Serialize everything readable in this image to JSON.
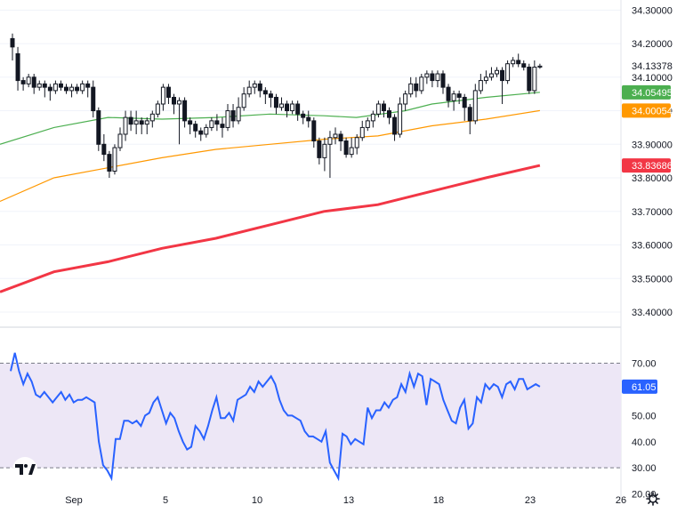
{
  "chart_data": [
    {
      "type": "candlestick",
      "ylim": [
        33.355,
        34.33
      ],
      "price_ticks": [
        "34.30000",
        "34.20000",
        "34.10000",
        "34.00000",
        "33.90000",
        "33.80000",
        "33.70000",
        "33.60000",
        "33.50000",
        "33.40000"
      ],
      "tick_values": [
        34.3,
        34.2,
        34.1,
        34.0,
        33.9,
        33.8,
        33.7,
        33.6,
        33.5,
        33.4
      ],
      "last_price": {
        "label": "34.13378",
        "value": 34.13378
      },
      "candles": [
        [
          34.215,
          34.19,
          34.23,
          34.15
        ],
        [
          34.17,
          34.09,
          34.19,
          34.06
        ],
        [
          34.09,
          34.08,
          34.1,
          34.06
        ],
        [
          34.08,
          34.1,
          34.11,
          34.07
        ],
        [
          34.1,
          34.07,
          34.11,
          34.05
        ],
        [
          34.07,
          34.08,
          34.09,
          34.06
        ],
        [
          34.08,
          34.07,
          34.09,
          34.04
        ],
        [
          34.07,
          34.06,
          34.08,
          34.03
        ],
        [
          34.06,
          34.08,
          34.09,
          34.05
        ],
        [
          34.08,
          34.07,
          34.09,
          34.06
        ],
        [
          34.07,
          34.06,
          34.08,
          34.05
        ],
        [
          34.06,
          34.07,
          34.08,
          34.04
        ],
        [
          34.07,
          34.06,
          34.08,
          34.05
        ],
        [
          34.06,
          34.08,
          34.09,
          34.05
        ],
        [
          34.08,
          34.07,
          34.09,
          34.04
        ],
        [
          34.07,
          34.0,
          34.09,
          33.98
        ],
        [
          34.0,
          33.9,
          34.01,
          33.88
        ],
        [
          33.9,
          33.87,
          33.93,
          33.85
        ],
        [
          33.87,
          33.82,
          33.88,
          33.8
        ],
        [
          33.82,
          33.89,
          33.9,
          33.81
        ],
        [
          33.89,
          33.93,
          33.95,
          33.88
        ],
        [
          33.93,
          33.98,
          34.0,
          33.91
        ],
        [
          33.98,
          33.96,
          34.0,
          33.94
        ],
        [
          33.96,
          33.97,
          34.0,
          33.93
        ],
        [
          33.97,
          33.96,
          33.98,
          33.93
        ],
        [
          33.96,
          33.97,
          33.98,
          33.93
        ],
        [
          33.97,
          33.99,
          34.0,
          33.95
        ],
        [
          33.99,
          34.02,
          34.03,
          33.98
        ],
        [
          34.02,
          34.07,
          34.08,
          34.0
        ],
        [
          34.07,
          34.04,
          34.08,
          34.02
        ],
        [
          34.04,
          34.02,
          34.05,
          33.99
        ],
        [
          34.02,
          34.03,
          34.04,
          33.9
        ],
        [
          34.03,
          33.97,
          34.04,
          33.95
        ],
        [
          33.97,
          33.96,
          33.98,
          33.93
        ],
        [
          33.96,
          33.94,
          33.97,
          33.92
        ],
        [
          33.94,
          33.93,
          33.95,
          33.91
        ],
        [
          33.93,
          33.95,
          33.96,
          33.92
        ],
        [
          33.95,
          33.97,
          33.98,
          33.94
        ],
        [
          33.97,
          33.96,
          33.99,
          33.94
        ],
        [
          33.96,
          33.95,
          33.98,
          33.92
        ],
        [
          33.95,
          34.0,
          34.02,
          33.94
        ],
        [
          34.0,
          33.97,
          34.02,
          33.95
        ],
        [
          33.97,
          34.01,
          34.04,
          33.96
        ],
        [
          34.01,
          34.05,
          34.07,
          34.0
        ],
        [
          34.05,
          34.07,
          34.09,
          34.04
        ],
        [
          34.07,
          34.08,
          34.09,
          34.05
        ],
        [
          34.08,
          34.06,
          34.09,
          34.04
        ],
        [
          34.06,
          34.05,
          34.07,
          34.02
        ],
        [
          34.05,
          34.04,
          34.06,
          34.01
        ],
        [
          34.04,
          34.01,
          34.05,
          33.99
        ],
        [
          34.01,
          34.02,
          34.04,
          34.0
        ],
        [
          34.02,
          34.0,
          34.03,
          33.98
        ],
        [
          34.0,
          34.02,
          34.03,
          33.99
        ],
        [
          34.02,
          33.99,
          34.03,
          33.97
        ],
        [
          33.99,
          33.98,
          34.0,
          33.96
        ],
        [
          33.98,
          33.97,
          34.0,
          33.95
        ],
        [
          33.97,
          33.91,
          33.98,
          33.89
        ],
        [
          33.91,
          33.86,
          33.92,
          33.84
        ],
        [
          33.86,
          33.9,
          33.92,
          33.82
        ],
        [
          33.9,
          33.92,
          33.94,
          33.8
        ],
        [
          33.92,
          33.93,
          33.95,
          33.9
        ],
        [
          33.93,
          33.91,
          33.94,
          33.88
        ],
        [
          33.91,
          33.87,
          33.92,
          33.86
        ],
        [
          33.87,
          33.89,
          33.92,
          33.86
        ],
        [
          33.89,
          33.92,
          33.93,
          33.87
        ],
        [
          33.92,
          33.95,
          33.97,
          33.91
        ],
        [
          33.95,
          33.97,
          33.98,
          33.94
        ],
        [
          33.97,
          33.99,
          34.0,
          33.95
        ],
        [
          33.99,
          34.02,
          34.03,
          33.98
        ],
        [
          34.02,
          34.0,
          34.03,
          33.98
        ],
        [
          34.0,
          33.98,
          34.01,
          33.96
        ],
        [
          33.98,
          33.93,
          33.99,
          33.91
        ],
        [
          33.93,
          34.02,
          34.04,
          33.92
        ],
        [
          34.02,
          34.05,
          34.06,
          34.0
        ],
        [
          34.05,
          34.08,
          34.1,
          34.04
        ],
        [
          34.08,
          34.06,
          34.1,
          34.04
        ],
        [
          34.06,
          34.1,
          34.11,
          34.05
        ],
        [
          34.1,
          34.11,
          34.12,
          34.08
        ],
        [
          34.11,
          34.09,
          34.12,
          34.07
        ],
        [
          34.09,
          34.11,
          34.12,
          34.07
        ],
        [
          34.11,
          34.07,
          34.12,
          34.05
        ],
        [
          34.07,
          34.03,
          34.08,
          34.01
        ],
        [
          34.03,
          34.05,
          34.06,
          34.0
        ],
        [
          34.05,
          34.04,
          34.06,
          34.02
        ],
        [
          34.04,
          34.01,
          34.05,
          33.97
        ],
        [
          34.01,
          33.97,
          34.02,
          33.93
        ],
        [
          33.97,
          34.06,
          34.08,
          33.96
        ],
        [
          34.06,
          34.09,
          34.11,
          34.05
        ],
        [
          34.09,
          34.1,
          34.12,
          34.08
        ],
        [
          34.1,
          34.11,
          34.13,
          34.09
        ],
        [
          34.11,
          34.12,
          34.13,
          34.1
        ],
        [
          34.12,
          34.09,
          34.13,
          34.02
        ],
        [
          34.09,
          34.14,
          34.15,
          34.08
        ],
        [
          34.14,
          34.15,
          34.16,
          34.13
        ],
        [
          34.15,
          34.14,
          34.17,
          34.13
        ],
        [
          34.14,
          34.13,
          34.15,
          34.12
        ],
        [
          34.13,
          34.06,
          34.14,
          34.05
        ],
        [
          34.06,
          34.13,
          34.15,
          34.05
        ],
        [
          34.13,
          34.133,
          34.14,
          34.125
        ]
      ],
      "ma_series": [
        {
          "color": "#4caf50",
          "badge": "34.05495",
          "value": 34.05495,
          "points": [
            [
              0,
              33.9
            ],
            [
              10,
              33.95
            ],
            [
              20,
              33.98
            ],
            [
              30,
              33.975
            ],
            [
              40,
              33.98
            ],
            [
              50,
              33.99
            ],
            [
              60,
              33.985
            ],
            [
              66,
              33.98
            ],
            [
              75,
              34.0
            ],
            [
              80,
              34.02
            ],
            [
              90,
              34.04
            ],
            [
              100,
              34.05495
            ]
          ]
        },
        {
          "color": "#ff9800",
          "badge": "34.00054",
          "value": 34.00054,
          "points": [
            [
              0,
              33.73
            ],
            [
              10,
              33.8
            ],
            [
              20,
              33.83
            ],
            [
              30,
              33.86
            ],
            [
              40,
              33.885
            ],
            [
              50,
              33.9
            ],
            [
              60,
              33.915
            ],
            [
              70,
              33.925
            ],
            [
              80,
              33.955
            ],
            [
              90,
              33.975
            ],
            [
              100,
              34.00054
            ]
          ]
        },
        {
          "color": "#f23645",
          "badge": "33.83686",
          "value": 33.83686,
          "points": [
            [
              0,
              33.46
            ],
            [
              10,
              33.52
            ],
            [
              20,
              33.55
            ],
            [
              30,
              33.59
            ],
            [
              40,
              33.62
            ],
            [
              50,
              33.66
            ],
            [
              60,
              33.7
            ],
            [
              70,
              33.72
            ],
            [
              80,
              33.76
            ],
            [
              90,
              33.8
            ],
            [
              100,
              33.83686
            ]
          ]
        }
      ]
    },
    {
      "type": "line",
      "ylim": [
        18.5,
        78
      ],
      "band": [
        30,
        70
      ],
      "tick_labels": [
        "70.00",
        "60.00",
        "50.00",
        "40.00",
        "30.00",
        "20.00"
      ],
      "tick_values": [
        70,
        60,
        50,
        40,
        30,
        20
      ],
      "current": {
        "label": "61.05",
        "value": 61.05
      },
      "line_color": "#2962ff",
      "values": [
        67,
        74,
        67,
        62,
        66,
        63,
        58,
        57,
        59,
        57,
        55,
        57,
        59,
        56,
        58,
        55,
        56,
        56,
        57,
        56,
        55,
        40,
        31,
        29,
        26,
        41,
        41,
        48,
        48,
        47,
        48,
        46,
        50,
        51,
        55,
        57,
        52,
        47,
        51,
        49,
        44,
        40,
        37,
        38,
        46,
        44,
        41,
        46,
        52,
        57,
        49,
        49,
        51,
        48,
        56,
        57,
        58,
        61,
        59,
        63,
        61,
        63,
        65,
        62,
        56,
        52,
        50,
        50,
        49,
        48,
        44,
        42,
        42,
        41,
        40,
        44,
        32,
        29,
        26,
        43,
        42,
        39,
        41,
        40,
        39,
        53,
        49,
        52,
        52,
        55,
        53,
        56,
        57,
        62,
        59,
        66,
        61,
        66,
        65,
        54,
        64,
        63,
        62,
        56,
        52,
        48,
        47,
        53,
        56,
        45,
        47,
        57,
        55,
        62,
        60,
        62,
        61,
        57,
        62,
        63,
        60,
        64,
        64,
        60,
        61,
        62,
        61.05
      ]
    }
  ],
  "x_axis": {
    "labels": [
      "Sep",
      "5",
      "10",
      "13",
      "18",
      "23",
      "26"
    ],
    "positions": [
      0.0,
      0.189,
      0.455,
      0.632,
      0.836,
      1.02,
      1.116
    ]
  },
  "colors": {
    "background": "#ffffff",
    "band_fill": "#ede7f6",
    "grid": "#f0f3fa",
    "text": "#131722"
  },
  "icons": {
    "logo": "tradingview-logo",
    "settings": "gear-icon"
  }
}
